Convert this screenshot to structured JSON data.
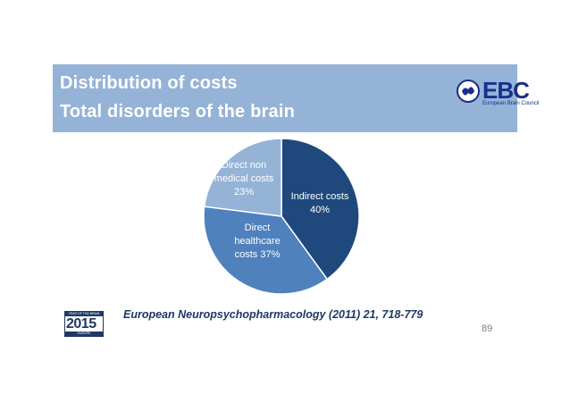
{
  "header": {
    "title_line1": "Distribution of costs",
    "title_line2": "Total disorders of the brain",
    "band_color": "#95b3d7"
  },
  "logo": {
    "text": "EBC",
    "subtitle": "European Brain Council",
    "icon": "ebc-brain-icon"
  },
  "chart_data": {
    "type": "pie",
    "slices": [
      {
        "label_lines": [
          "Indirect costs",
          "40%"
        ],
        "value": 40,
        "color": "#1f497d"
      },
      {
        "label_lines": [
          "Direct",
          "healthcare",
          "costs 37%"
        ],
        "value": 37,
        "color": "#4f81bd"
      },
      {
        "label_lines": [
          "Direct non",
          "medical costs",
          "23%"
        ],
        "value": 23,
        "color": "#95b3d7"
      }
    ]
  },
  "citation": "European Neuropsychopharmacology (2011) 21, 718-779",
  "page_number": "89",
  "year_badge": {
    "top": "YEAR OF THE BRAIN",
    "year": "2015",
    "bottom": "EUROPE"
  }
}
